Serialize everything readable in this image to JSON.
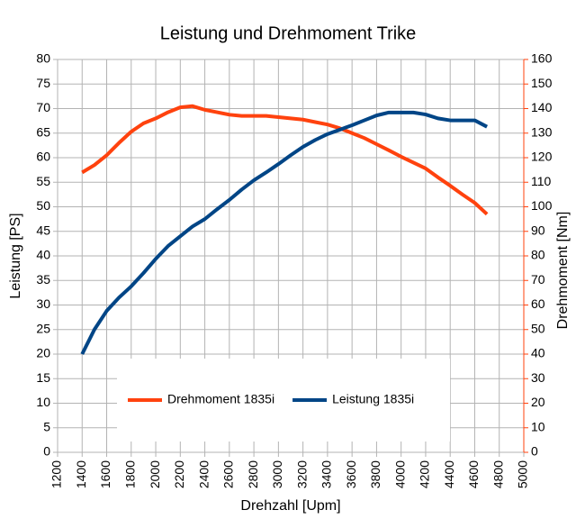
{
  "chart_data": {
    "type": "line",
    "title": "Leistung und Drehmoment Trike",
    "xlabel": "Drehzahl [Upm]",
    "ylabel": "Leistung [PS]",
    "y2label": "Drehmoment [Nm]",
    "x": [
      1400,
      1500,
      1600,
      1700,
      1800,
      1900,
      2000,
      2100,
      2200,
      2300,
      2400,
      2500,
      2600,
      2700,
      2800,
      2900,
      3000,
      3100,
      3200,
      3300,
      3400,
      3500,
      3600,
      3700,
      3800,
      3900,
      4000,
      4100,
      4200,
      4300,
      4400,
      4500,
      4600,
      4700
    ],
    "series": [
      {
        "name": "Drehmoment 1835i",
        "color": "#ff420e",
        "axis": "y2",
        "values": [
          114,
          117,
          121,
          126,
          130.6,
          134,
          136,
          138.5,
          140.5,
          141,
          139.5,
          138.5,
          137.5,
          137,
          137,
          137,
          136.5,
          136,
          135.5,
          134.5,
          133.5,
          132,
          130,
          128,
          125.5,
          123,
          120.4,
          118,
          115.6,
          112,
          108.6,
          105,
          101.6,
          97
        ]
      },
      {
        "name": "Leistung 1835i",
        "color": "#004586",
        "values": [
          20,
          25,
          28.8,
          31.5,
          33.8,
          36.5,
          39.4,
          42,
          44,
          46,
          47.5,
          49.5,
          51.4,
          53.5,
          55.4,
          57,
          58.7,
          60.5,
          62.2,
          63.6,
          64.8,
          65.7,
          66.6,
          67.6,
          68.6,
          69.2,
          69.2,
          69.2,
          68.8,
          68,
          67.6,
          67.6,
          67.6,
          66.3
        ]
      }
    ],
    "xlim": [
      1200,
      5000
    ],
    "xticks": [
      1200,
      1400,
      1600,
      1800,
      2000,
      2200,
      2400,
      2600,
      2800,
      3000,
      3200,
      3400,
      3600,
      3800,
      4000,
      4200,
      4400,
      4600,
      4800,
      5000
    ],
    "ylim": [
      0,
      80
    ],
    "yticks": [
      0,
      5,
      10,
      15,
      20,
      25,
      30,
      35,
      40,
      45,
      50,
      55,
      60,
      65,
      70,
      75,
      80
    ],
    "y2lim": [
      0,
      160
    ],
    "y2ticks": [
      0,
      10,
      20,
      30,
      40,
      50,
      60,
      70,
      80,
      90,
      100,
      110,
      120,
      130,
      140,
      150,
      160
    ],
    "ytick_color": "#004586",
    "y2tick_color": "#ff420e",
    "grid": true,
    "legend": "lower center"
  }
}
